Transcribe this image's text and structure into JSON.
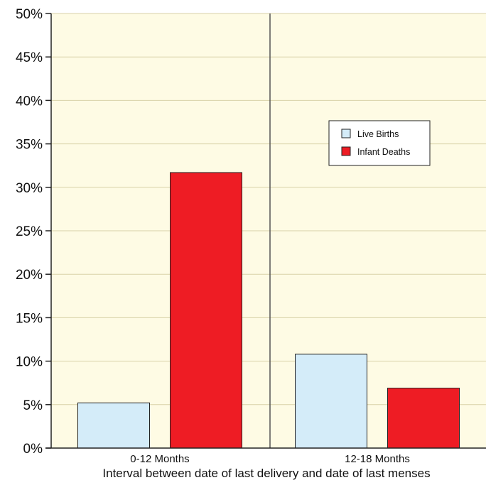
{
  "chart_data": {
    "type": "bar",
    "categories": [
      "0-12 Months",
      "12-18 Months"
    ],
    "series": [
      {
        "name": "Live Births",
        "values": [
          5.2,
          10.8
        ],
        "color": "#d4ecf9"
      },
      {
        "name": "Infant Deaths",
        "values": [
          31.7,
          6.9
        ],
        "color": "#ee1c24"
      }
    ],
    "title": "",
    "xlabel": "Interval between date of last delivery and date of last menses",
    "ylabel": "",
    "ylim": [
      0,
      50
    ],
    "y_ticks": [
      "0%",
      "5%",
      "10%",
      "15%",
      "20%",
      "25%",
      "30%",
      "35%",
      "40%",
      "45%",
      "50%"
    ],
    "grid": true,
    "legend_position": "upper-right",
    "plot_background": "#fefbe4",
    "gridline_color": "#d8d2a8"
  }
}
